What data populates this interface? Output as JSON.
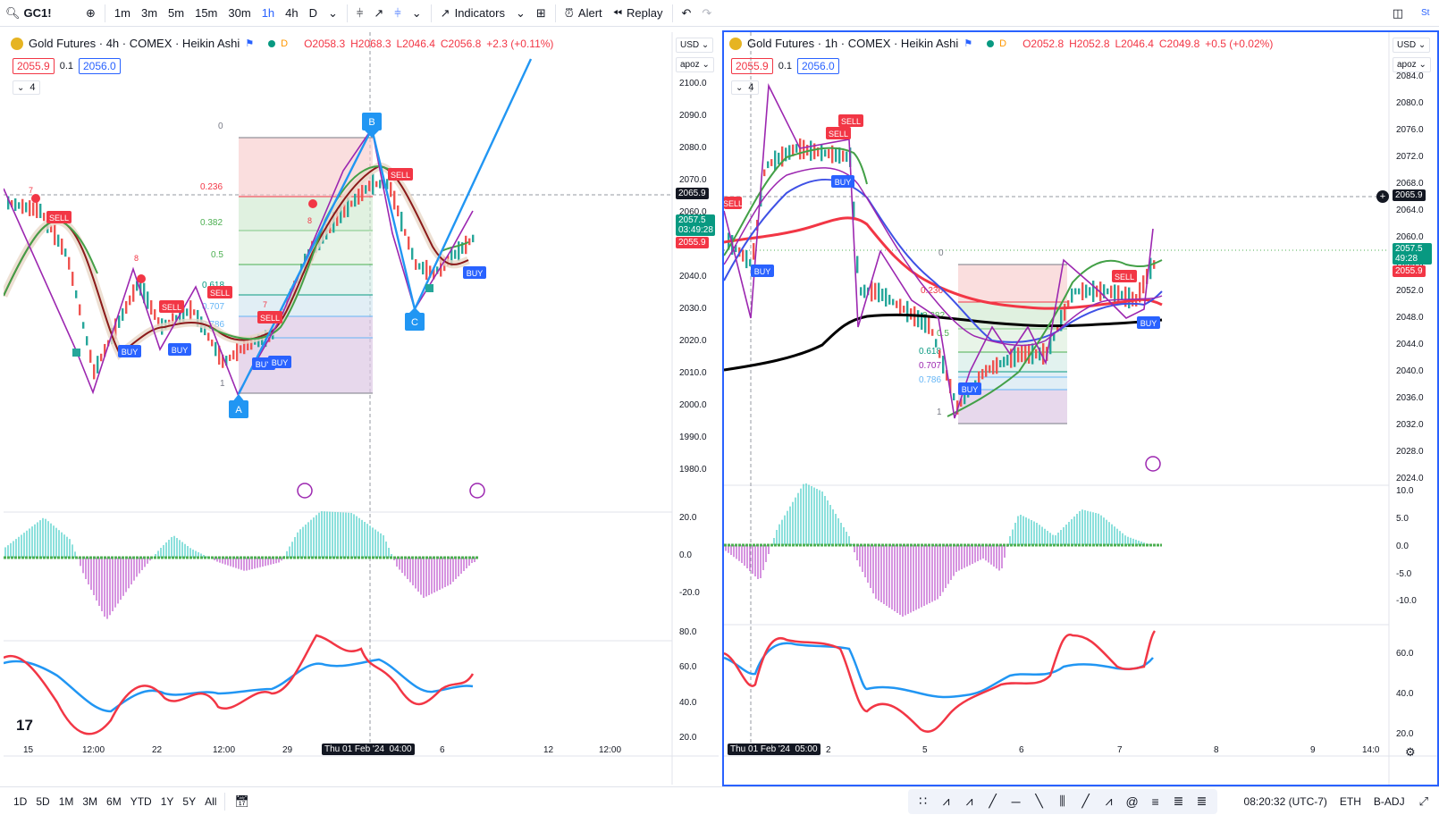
{
  "toolbar": {
    "symbol": "GC1!",
    "intervals": [
      "1m",
      "3m",
      "5m",
      "15m",
      "30m",
      "1h",
      "4h",
      "D"
    ],
    "active_interval": "1h",
    "indicators_label": "Indicators",
    "alert_label": "Alert",
    "replay_label": "Replay",
    "corner_text": "St"
  },
  "left_chart": {
    "title": "Gold Futures · 4h · COMEX · Heikin Ashi",
    "status_letter": "D",
    "ohlc": {
      "o": "O2058.3",
      "h": "H2068.3",
      "l": "L2046.4",
      "c": "C2056.8",
      "chg": "+2.3 (+0.11%)"
    },
    "bid": "2055.9",
    "spread": "0.1",
    "ask": "2056.0",
    "collapse_count": "4",
    "currency": "USD",
    "scale_mode": "apoz",
    "price_ticks": [
      "2100.0",
      "2090.0",
      "2080.0",
      "2070.0",
      "2060.0",
      "2050.0",
      "2040.0",
      "2030.0",
      "2020.0",
      "2010.0",
      "2000.0",
      "1990.0",
      "1980.0"
    ],
    "price_tag_hline": "2065.9",
    "price_tag_last": "2057.5",
    "price_tag_countdown": "03:49:28",
    "price_tag_bid": "2055.9",
    "macd_ticks": [
      "20.0",
      "0.0",
      "-20.0"
    ],
    "rsi_ticks": [
      "80.0",
      "60.0",
      "40.0",
      "20.0"
    ],
    "time_labels": [
      "15",
      "12:00",
      "22",
      "12:00",
      "29",
      "6",
      "12",
      "12:00"
    ],
    "crosshair_time": "Thu 01 Feb '24",
    "crosshair_time_extra": "04:00",
    "fib_levels": [
      "0",
      "0.236",
      "0.382",
      "0.5",
      "0.618",
      "0.707",
      "0.786",
      "1"
    ],
    "abc_labels": [
      "A",
      "B",
      "C"
    ],
    "signal_sell": "SELL",
    "signal_buy": "BUY",
    "count_labels": [
      "7",
      "8",
      "8",
      "7",
      "8",
      "8"
    ]
  },
  "right_chart": {
    "title": "Gold Futures · 1h · COMEX · Heikin Ashi",
    "status_letter": "D",
    "ohlc": {
      "o": "O2052.8",
      "h": "H2052.8",
      "l": "L2046.4",
      "c": "C2049.8",
      "chg": "+0.5 (+0.02%)"
    },
    "bid": "2055.9",
    "spread": "0.1",
    "ask": "2056.0",
    "collapse_count": "4",
    "currency": "USD",
    "scale_mode": "apoz",
    "price_ticks": [
      "2084.0",
      "2080.0",
      "2076.0",
      "2072.0",
      "2068.0",
      "2064.0",
      "2060.0",
      "2056.0",
      "2052.0",
      "2048.0",
      "2044.0",
      "2040.0",
      "2036.0",
      "2032.0",
      "2028.0",
      "2024.0"
    ],
    "price_tag_hline": "2065.9",
    "price_tag_last": "2057.5",
    "price_tag_countdown": "49:28",
    "price_tag_bid": "2055.9",
    "macd_ticks": [
      "10.0",
      "5.0",
      "0.0",
      "-5.0",
      "-10.0"
    ],
    "rsi_ticks": [
      "60.0",
      "40.0",
      "20.0"
    ],
    "time_labels": [
      "2",
      "5",
      "6",
      "7",
      "8",
      "9",
      "14:0"
    ],
    "crosshair_time": "Thu 01 Feb '24",
    "crosshair_time_extra": "05:00",
    "fib_levels": [
      "0",
      "0.236",
      "0.382",
      "0.5",
      "0.618",
      "0.707",
      "0.786",
      "1"
    ],
    "signal_sell": "SELL",
    "signal_buy": "BUY"
  },
  "bottombar": {
    "ranges": [
      "1D",
      "5D",
      "1M",
      "3M",
      "6M",
      "YTD",
      "1Y",
      "5Y",
      "All"
    ],
    "clock": "08:20:32 (UTC-7)",
    "session": "ETH",
    "adjust": "B-ADJ"
  },
  "logo_text": "17"
}
